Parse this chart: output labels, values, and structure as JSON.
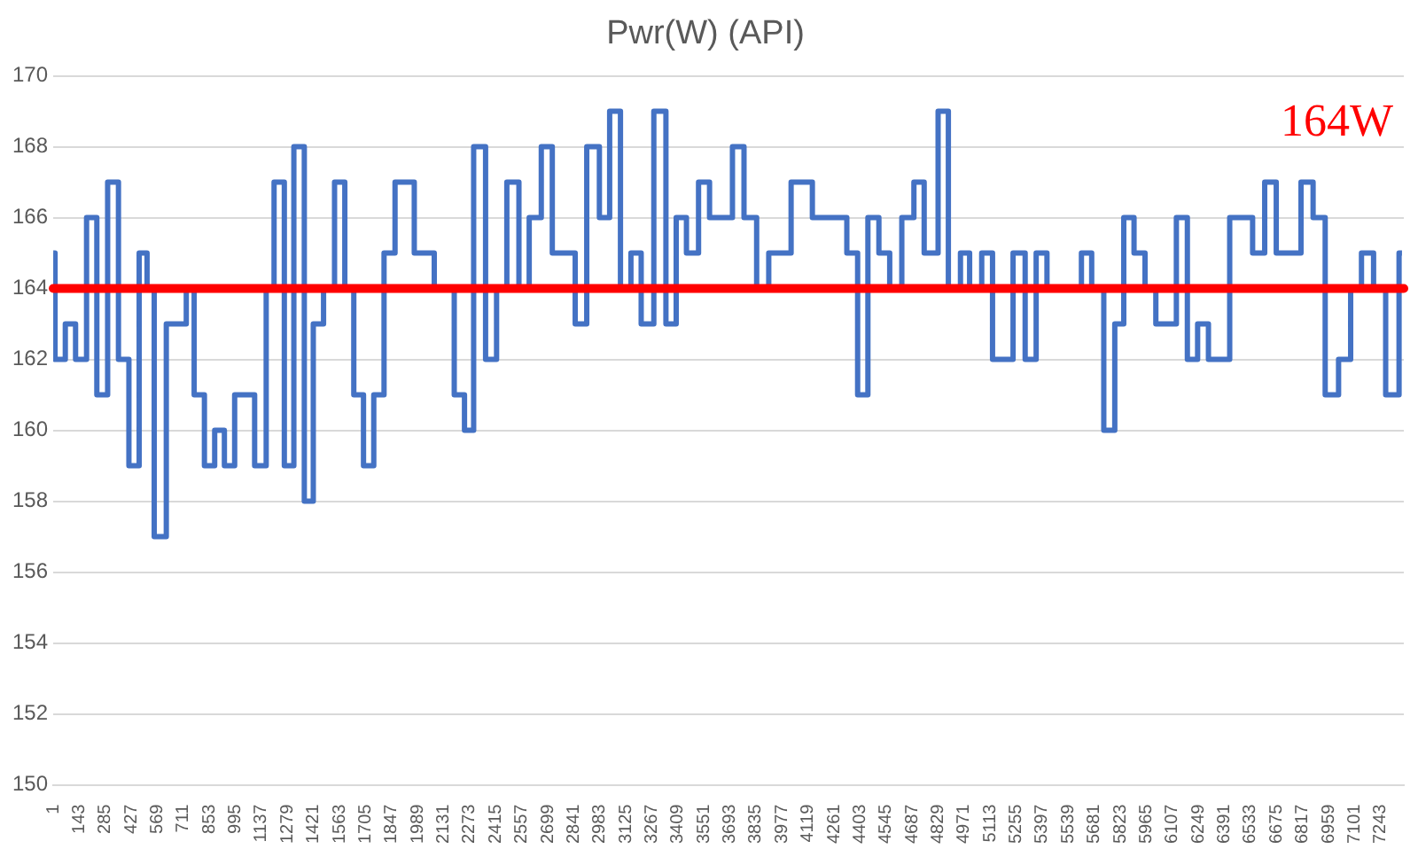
{
  "chart_data": {
    "type": "step",
    "title": "Pwr(W) (API)",
    "x": [
      1,
      11,
      67,
      123,
      183,
      239,
      298,
      357,
      414,
      470,
      513,
      552,
      618,
      727,
      770,
      826,
      882,
      935,
      991,
      1100,
      1163,
      1206,
      1262,
      1314,
      1371,
      1420,
      1476,
      1536,
      1592,
      1641,
      1694,
      1750,
      1806,
      1866,
      1971,
      2080,
      2189,
      2245,
      2295,
      2360,
      2420,
      2476,
      2542,
      2598,
      2664,
      2724,
      2849,
      2912,
      2981,
      3037,
      3096,
      3153,
      3209,
      3278,
      3344,
      3400,
      3456,
      3522,
      3582,
      3707,
      3770,
      3839,
      3905,
      4027,
      4143,
      4331,
      4390,
      4446,
      4506,
      4565,
      4631,
      4697,
      4753,
      4829,
      4885,
      4951,
      5001,
      5067,
      5126,
      5238,
      5304,
      5364,
      5423,
      5611,
      5667,
      5733,
      5793,
      5842,
      5898,
      5958,
      6017,
      6129,
      6189,
      6245,
      6304,
      6420,
      6545,
      6611,
      6674,
      6809,
      6875,
      6941,
      7014,
      7080,
      7139,
      7205,
      7271,
      7344,
      7360
    ],
    "series": [
      {
        "color": "#4472c4",
        "values": [
          165,
          162,
          163,
          162,
          166,
          161,
          167,
          162,
          159,
          165,
          164,
          157,
          163,
          164,
          161,
          159,
          160,
          159,
          161,
          159,
          164,
          167,
          159,
          168,
          158,
          163,
          164,
          167,
          164,
          161,
          159,
          161,
          165,
          167,
          165,
          164,
          161,
          160,
          168,
          162,
          164,
          167,
          164,
          166,
          168,
          165,
          163,
          168,
          166,
          169,
          164,
          165,
          163,
          169,
          163,
          166,
          165,
          167,
          166,
          168,
          166,
          164,
          165,
          167,
          166,
          165,
          161,
          166,
          165,
          164,
          166,
          167,
          165,
          169,
          164,
          165,
          164,
          165,
          162,
          165,
          162,
          165,
          164,
          165,
          164,
          160,
          163,
          166,
          165,
          164,
          163,
          166,
          162,
          163,
          162,
          166,
          165,
          167,
          165,
          167,
          166,
          161,
          162,
          164,
          165,
          164,
          161,
          165,
          165
        ]
      }
    ],
    "xlim": [
      1,
      7370
    ],
    "xticks": [
      1,
      143,
      285,
      427,
      569,
      711,
      853,
      995,
      1137,
      1279,
      1421,
      1563,
      1705,
      1847,
      1989,
      2131,
      2273,
      2415,
      2557,
      2699,
      2841,
      2983,
      3125,
      3267,
      3409,
      3551,
      3693,
      3835,
      3977,
      4119,
      4261,
      4403,
      4545,
      4687,
      4829,
      4971,
      5113,
      5255,
      5397,
      5539,
      5681,
      5823,
      5965,
      6107,
      6249,
      6391,
      6533,
      6675,
      6817,
      6959,
      7101,
      7243
    ],
    "ylim": [
      150,
      170
    ],
    "yticks": [
      150,
      152,
      154,
      156,
      158,
      160,
      162,
      164,
      166,
      168,
      170
    ],
    "grid": "y",
    "legend": false,
    "ref_lines": [
      {
        "axis": "y",
        "value": 164,
        "label": "164W",
        "color": "#ff0000"
      }
    ]
  }
}
